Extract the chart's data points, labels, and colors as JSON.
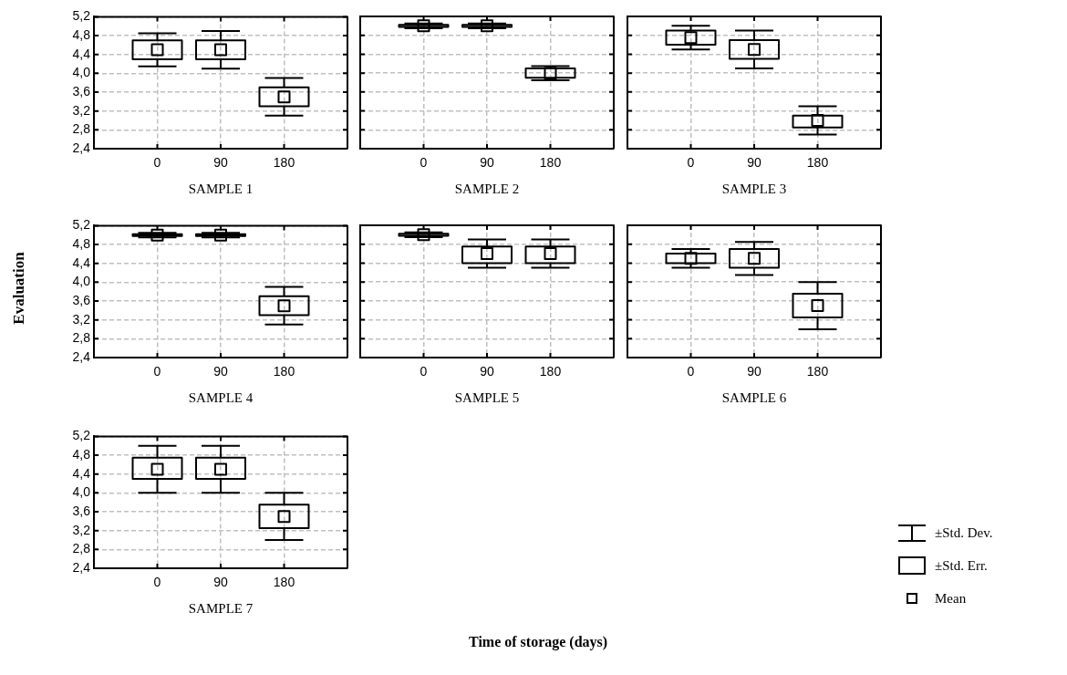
{
  "chart_data": [
    {
      "type": "box",
      "xlabel": "SAMPLE 1",
      "categories": [
        "0",
        "90",
        "180"
      ],
      "color": "#000000",
      "ylim": [
        2.4,
        5.2
      ],
      "yticks": [
        {
          "value": 2.4,
          "label": "2,4"
        },
        {
          "value": 2.8,
          "label": "2,8"
        },
        {
          "value": 3.2,
          "label": "3,2"
        },
        {
          "value": 3.6,
          "label": "3,6"
        },
        {
          "value": 4.0,
          "label": "4,0"
        },
        {
          "value": 4.4,
          "label": "4,4"
        },
        {
          "value": 4.8,
          "label": "4,8"
        },
        {
          "value": 5.2,
          "label": "5,2"
        }
      ],
      "grid": true,
      "boxes": [
        {
          "low": 4.15,
          "q1": 4.3,
          "q3": 4.7,
          "high": 4.85,
          "mean": 4.5
        },
        {
          "low": 4.1,
          "q1": 4.3,
          "q3": 4.7,
          "high": 4.9,
          "mean": 4.5
        },
        {
          "low": 3.1,
          "q1": 3.3,
          "q3": 3.7,
          "high": 3.9,
          "mean": 3.5
        }
      ]
    },
    {
      "type": "box",
      "xlabel": "SAMPLE 2",
      "categories": [
        "0",
        "90",
        "180"
      ],
      "color": "#000000",
      "ylim": [
        2.4,
        5.2
      ],
      "yticks": [
        {
          "value": 2.4,
          "label": null
        },
        {
          "value": 2.8,
          "label": null
        },
        {
          "value": 3.2,
          "label": null
        },
        {
          "value": 3.6,
          "label": null
        },
        {
          "value": 4.0,
          "label": null
        },
        {
          "value": 4.4,
          "label": null
        },
        {
          "value": 4.8,
          "label": null
        },
        {
          "value": 5.2,
          "label": null
        }
      ],
      "grid": true,
      "tick_labels": "x",
      "boxes": [
        {
          "low": 4.95,
          "q1": 4.98,
          "q3": 5.02,
          "high": 5.05,
          "mean": 5.0
        },
        {
          "low": 4.95,
          "q1": 4.98,
          "q3": 5.02,
          "high": 5.05,
          "mean": 5.0
        },
        {
          "low": 3.85,
          "q1": 3.9,
          "q3": 4.1,
          "high": 4.15,
          "mean": 4.0
        }
      ]
    },
    {
      "type": "box",
      "xlabel": "SAMPLE 3",
      "categories": [
        "0",
        "90",
        "180"
      ],
      "color": "#000000",
      "ylim": [
        2.4,
        5.2
      ],
      "yticks": [
        {
          "value": 2.4,
          "label": null
        },
        {
          "value": 2.8,
          "label": null
        },
        {
          "value": 3.2,
          "label": null
        },
        {
          "value": 3.6,
          "label": null
        },
        {
          "value": 4.0,
          "label": null
        },
        {
          "value": 4.4,
          "label": null
        },
        {
          "value": 4.8,
          "label": null
        },
        {
          "value": 5.2,
          "label": null
        }
      ],
      "grid": true,
      "tick_labels": "x",
      "boxes": [
        {
          "low": 4.5,
          "q1": 4.6,
          "q3": 4.9,
          "high": 5.0,
          "mean": 4.75
        },
        {
          "low": 4.1,
          "q1": 4.3,
          "q3": 4.7,
          "high": 4.9,
          "mean": 4.5
        },
        {
          "low": 2.7,
          "q1": 2.85,
          "q3": 3.1,
          "high": 3.3,
          "mean": 3.0
        }
      ]
    },
    {
      "type": "box",
      "xlabel": "SAMPLE 4",
      "ylabel": "Evaluation",
      "categories": [
        "0",
        "90",
        "180"
      ],
      "color": "#000000",
      "ylim": [
        2.4,
        5.2
      ],
      "yticks": [
        {
          "value": 2.4,
          "label": "2,4"
        },
        {
          "value": 2.8,
          "label": "2,8"
        },
        {
          "value": 3.2,
          "label": "3,2"
        },
        {
          "value": 3.6,
          "label": "3,6"
        },
        {
          "value": 4.0,
          "label": "4,0"
        },
        {
          "value": 4.4,
          "label": "4,4"
        },
        {
          "value": 4.8,
          "label": "4,8"
        },
        {
          "value": 5.2,
          "label": "5,2"
        }
      ],
      "grid": true,
      "boxes": [
        {
          "low": 4.95,
          "q1": 4.98,
          "q3": 5.02,
          "high": 5.05,
          "mean": 5.0
        },
        {
          "low": 4.95,
          "q1": 4.98,
          "q3": 5.02,
          "high": 5.05,
          "mean": 5.0
        },
        {
          "low": 3.1,
          "q1": 3.3,
          "q3": 3.7,
          "high": 3.9,
          "mean": 3.5
        }
      ]
    },
    {
      "type": "box",
      "xlabel": "SAMPLE 5",
      "categories": [
        "0",
        "90",
        "180"
      ],
      "color": "#000000",
      "ylim": [
        2.4,
        5.2
      ],
      "yticks": [
        {
          "value": 2.4,
          "label": null
        },
        {
          "value": 2.8,
          "label": null
        },
        {
          "value": 3.2,
          "label": null
        },
        {
          "value": 3.6,
          "label": null
        },
        {
          "value": 4.0,
          "label": null
        },
        {
          "value": 4.4,
          "label": null
        },
        {
          "value": 4.8,
          "label": null
        },
        {
          "value": 5.2,
          "label": null
        }
      ],
      "grid": true,
      "tick_labels": "x",
      "boxes": [
        {
          "low": 4.95,
          "q1": 4.98,
          "q3": 5.02,
          "high": 5.05,
          "mean": 5.0
        },
        {
          "low": 4.3,
          "q1": 4.4,
          "q3": 4.75,
          "high": 4.9,
          "mean": 4.6
        },
        {
          "low": 4.3,
          "q1": 4.4,
          "q3": 4.75,
          "high": 4.9,
          "mean": 4.6
        }
      ]
    },
    {
      "type": "box",
      "xlabel": "SAMPLE 6",
      "categories": [
        "0",
        "90",
        "180"
      ],
      "color": "#000000",
      "ylim": [
        2.4,
        5.2
      ],
      "yticks": [
        {
          "value": 2.4,
          "label": null
        },
        {
          "value": 2.8,
          "label": null
        },
        {
          "value": 3.2,
          "label": null
        },
        {
          "value": 3.6,
          "label": null
        },
        {
          "value": 4.0,
          "label": null
        },
        {
          "value": 4.4,
          "label": null
        },
        {
          "value": 4.8,
          "label": null
        },
        {
          "value": 5.2,
          "label": null
        }
      ],
      "grid": true,
      "tick_labels": "x",
      "boxes": [
        {
          "low": 4.3,
          "q1": 4.4,
          "q3": 4.6,
          "high": 4.7,
          "mean": 4.5
        },
        {
          "low": 4.15,
          "q1": 4.3,
          "q3": 4.7,
          "high": 4.85,
          "mean": 4.5
        },
        {
          "low": 3.0,
          "q1": 3.25,
          "q3": 3.75,
          "high": 4.0,
          "mean": 3.5
        }
      ]
    },
    {
      "type": "box",
      "xlabel": "SAMPLE 7",
      "categories": [
        "0",
        "90",
        "180"
      ],
      "color": "#000000",
      "ylim": [
        2.4,
        5.2
      ],
      "yticks": [
        {
          "value": 2.4,
          "label": "2,4"
        },
        {
          "value": 2.8,
          "label": "2,8"
        },
        {
          "value": 3.2,
          "label": "3,2"
        },
        {
          "value": 3.6,
          "label": "3,6"
        },
        {
          "value": 4.0,
          "label": "4,0"
        },
        {
          "value": 4.4,
          "label": "4,4"
        },
        {
          "value": 4.8,
          "label": "4,8"
        },
        {
          "value": 5.2,
          "label": "5,2"
        }
      ],
      "grid": true,
      "annotations": [
        "Time of storage (days)",
        "±Std. Dev.",
        "±Std. Err.",
        "Mean"
      ],
      "boxes": [
        {
          "low": 4.0,
          "q1": 4.3,
          "q3": 4.75,
          "high": 5.0,
          "mean": 4.5
        },
        {
          "low": 4.0,
          "q1": 4.3,
          "q3": 4.75,
          "high": 5.0,
          "mean": 4.5
        },
        {
          "low": 3.0,
          "q1": 3.25,
          "q3": 3.75,
          "high": 4.0,
          "mean": 3.5
        }
      ]
    }
  ]
}
